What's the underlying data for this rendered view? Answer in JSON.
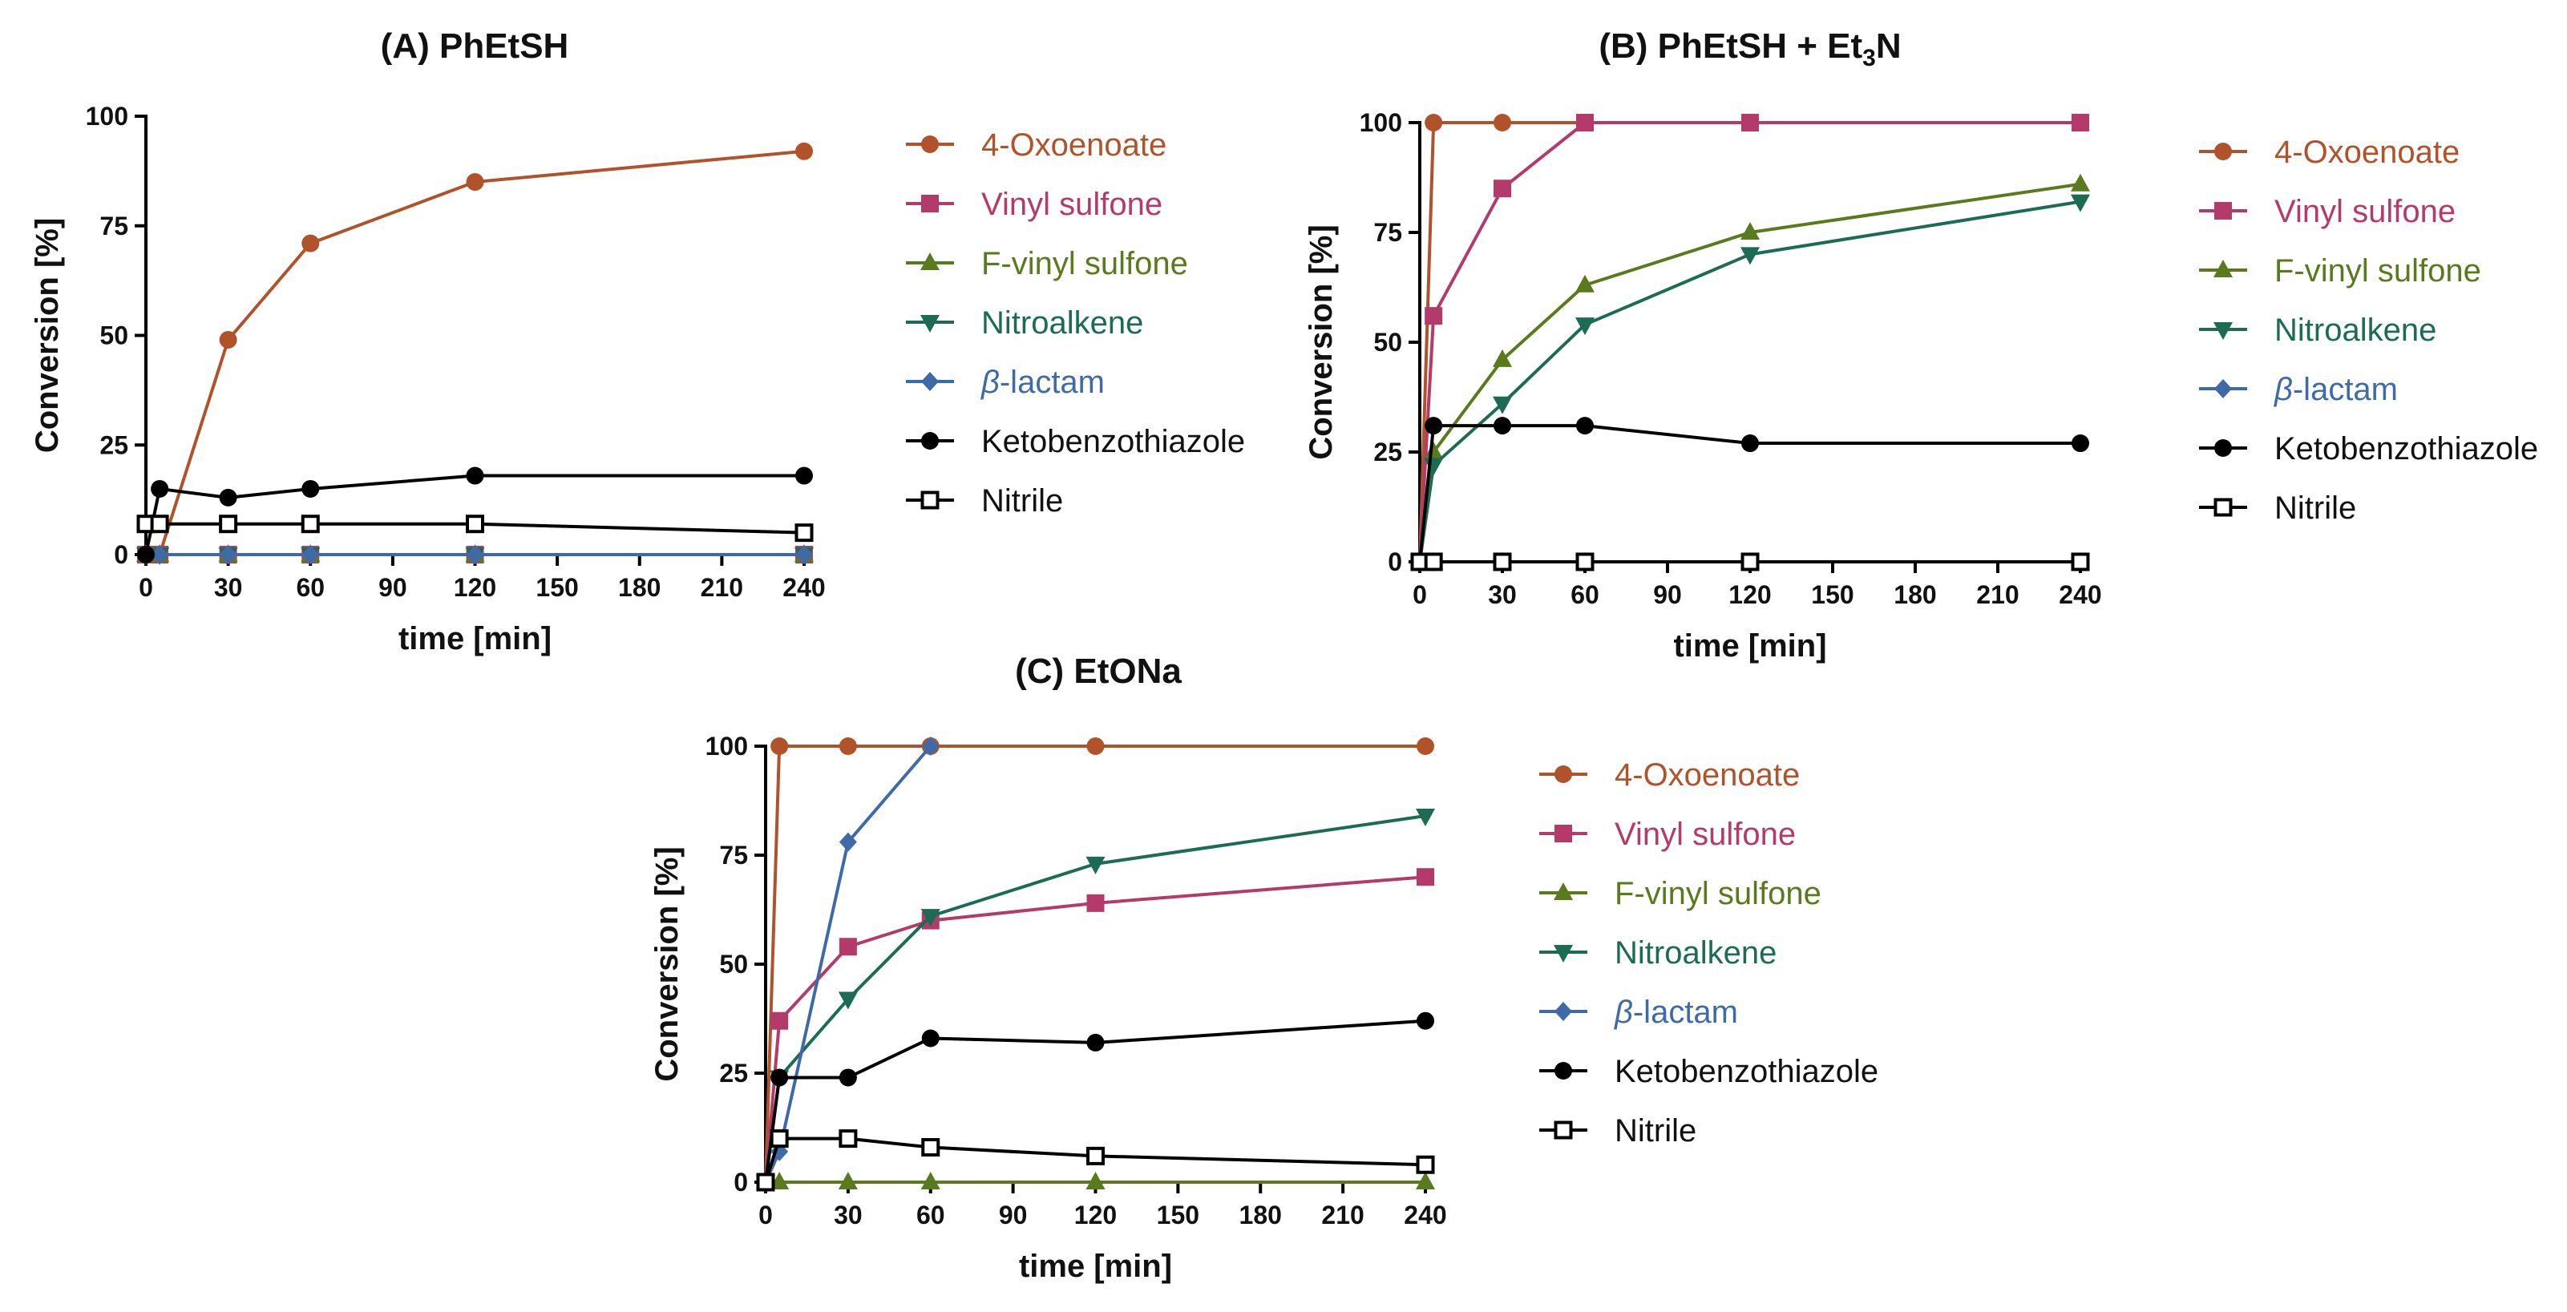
{
  "chart_data": [
    {
      "type": "line",
      "panel": "A",
      "title": "(A) PhEtSH",
      "xlabel": "time [min]",
      "ylabel": "Conversion [%]",
      "xlim": [
        0,
        240
      ],
      "ylim": [
        0,
        100
      ],
      "xticks": [
        0,
        30,
        60,
        90,
        120,
        150,
        180,
        210,
        240
      ],
      "yticks": [
        0,
        25,
        50,
        75,
        100
      ],
      "legend_position": "right",
      "series": [
        {
          "name": "4-Oxoenoate",
          "color": "#b0532a",
          "marker": "circle",
          "x": [
            0,
            5,
            30,
            60,
            120,
            240
          ],
          "y": [
            0,
            0,
            49,
            71,
            85,
            92
          ]
        },
        {
          "name": "Vinyl sulfone",
          "color": "#b43a6c",
          "marker": "square",
          "x": [
            0,
            5,
            30,
            60,
            120,
            240
          ],
          "y": [
            0,
            0,
            0,
            0,
            0,
            0
          ]
        },
        {
          "name": "F-vinyl sulfone",
          "color": "#5a7a1e",
          "marker": "triangle-up",
          "x": [
            0,
            5,
            30,
            60,
            120,
            240
          ],
          "y": [
            0,
            0,
            0,
            0,
            0,
            0
          ]
        },
        {
          "name": "Nitroalkene",
          "color": "#1b6b55",
          "marker": "triangle-down",
          "x": [
            0,
            5,
            30,
            60,
            120,
            240
          ],
          "y": [
            0,
            0,
            0,
            0,
            0,
            0
          ]
        },
        {
          "name": "β-lactam",
          "color": "#3f6aa8",
          "marker": "diamond",
          "x": [
            0,
            5,
            30,
            60,
            120,
            240
          ],
          "y": [
            0,
            0,
            0,
            0,
            0,
            0
          ]
        },
        {
          "name": "Ketobenzothiazole",
          "color": "#000000",
          "marker": "circle",
          "x": [
            0,
            5,
            30,
            60,
            120,
            240
          ],
          "y": [
            0,
            15,
            13,
            15,
            18,
            18
          ]
        },
        {
          "name": "Nitrile",
          "color": "#000000",
          "marker": "open-square",
          "x": [
            0,
            5,
            30,
            60,
            120,
            240
          ],
          "y": [
            7,
            7,
            7,
            7,
            7,
            5
          ]
        }
      ]
    },
    {
      "type": "line",
      "panel": "B",
      "title": "(B) PhEtSH + Et3N",
      "xlabel": "time [min]",
      "ylabel": "Conversion [%]",
      "xlim": [
        0,
        240
      ],
      "ylim": [
        0,
        100
      ],
      "xticks": [
        0,
        30,
        60,
        90,
        120,
        150,
        180,
        210,
        240
      ],
      "yticks": [
        0,
        25,
        50,
        75,
        100
      ],
      "legend_position": "right",
      "series": [
        {
          "name": "4-Oxoenoate",
          "color": "#b0532a",
          "marker": "circle",
          "x": [
            0,
            5,
            30,
            60,
            120,
            240
          ],
          "y": [
            0,
            100,
            100,
            100,
            100,
            100
          ]
        },
        {
          "name": "Vinyl sulfone",
          "color": "#b43a6c",
          "marker": "square",
          "x": [
            0,
            5,
            30,
            60,
            120,
            240
          ],
          "y": [
            0,
            56,
            85,
            100,
            100,
            100
          ]
        },
        {
          "name": "F-vinyl sulfone",
          "color": "#5a7a1e",
          "marker": "triangle-up",
          "x": [
            0,
            5,
            30,
            60,
            120,
            240
          ],
          "y": [
            0,
            25,
            46,
            63,
            75,
            86
          ]
        },
        {
          "name": "Nitroalkene",
          "color": "#1b6b55",
          "marker": "triangle-down",
          "x": [
            0,
            5,
            30,
            60,
            120,
            240
          ],
          "y": [
            0,
            22,
            36,
            54,
            70,
            82
          ]
        },
        {
          "name": "β-lactam",
          "color": "#3f6aa8",
          "marker": "diamond",
          "x": [
            0,
            5,
            30,
            60,
            120,
            240
          ],
          "y": [
            0,
            0,
            0,
            0,
            0,
            0
          ]
        },
        {
          "name": "Ketobenzothiazole",
          "color": "#000000",
          "marker": "circle",
          "x": [
            0,
            5,
            30,
            60,
            120,
            240
          ],
          "y": [
            0,
            31,
            31,
            31,
            27,
            27
          ]
        },
        {
          "name": "Nitrile",
          "color": "#000000",
          "marker": "open-square",
          "x": [
            0,
            5,
            30,
            60,
            120,
            240
          ],
          "y": [
            0,
            0,
            0,
            0,
            0,
            0
          ]
        }
      ]
    },
    {
      "type": "line",
      "panel": "C",
      "title": "(C) EtONa",
      "xlabel": "time [min]",
      "ylabel": "Conversion [%]",
      "xlim": [
        0,
        240
      ],
      "ylim": [
        0,
        100
      ],
      "xticks": [
        0,
        30,
        60,
        90,
        120,
        150,
        180,
        210,
        240
      ],
      "yticks": [
        0,
        25,
        50,
        75,
        100
      ],
      "legend_position": "right",
      "series": [
        {
          "name": "4-Oxoenoate",
          "color": "#b0532a",
          "marker": "circle",
          "x": [
            0,
            5,
            30,
            60,
            120,
            240
          ],
          "y": [
            0,
            100,
            100,
            100,
            100,
            100
          ]
        },
        {
          "name": "Vinyl sulfone",
          "color": "#b43a6c",
          "marker": "square",
          "x": [
            0,
            5,
            30,
            60,
            120,
            240
          ],
          "y": [
            0,
            37,
            54,
            60,
            64,
            70
          ]
        },
        {
          "name": "F-vinyl sulfone",
          "color": "#5a7a1e",
          "marker": "triangle-up",
          "x": [
            0,
            5,
            30,
            60,
            120,
            240
          ],
          "y": [
            0,
            0,
            0,
            0,
            0,
            0
          ]
        },
        {
          "name": "Nitroalkene",
          "color": "#1b6b55",
          "marker": "triangle-down",
          "x": [
            0,
            5,
            30,
            60,
            120,
            240
          ],
          "y": [
            0,
            24,
            42,
            61,
            73,
            84
          ]
        },
        {
          "name": "β-lactam",
          "color": "#3f6aa8",
          "marker": "diamond",
          "x": [
            0,
            5,
            30,
            60
          ],
          "y": [
            0,
            7,
            78,
            100
          ]
        },
        {
          "name": "Ketobenzothiazole",
          "color": "#000000",
          "marker": "circle",
          "x": [
            0,
            5,
            30,
            60,
            120,
            240
          ],
          "y": [
            0,
            24,
            24,
            33,
            32,
            37
          ]
        },
        {
          "name": "Nitrile",
          "color": "#000000",
          "marker": "open-square",
          "x": [
            0,
            5,
            30,
            60,
            120,
            240
          ],
          "y": [
            0,
            10,
            10,
            8,
            6,
            4
          ]
        }
      ]
    }
  ]
}
